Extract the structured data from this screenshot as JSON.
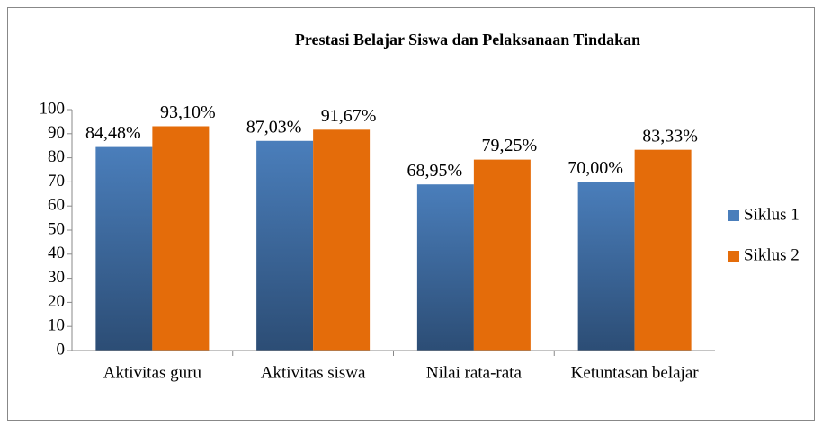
{
  "chart_data": {
    "type": "bar",
    "title": "Prestasi Belajar Siswa dan Pelaksanaan Tindakan",
    "categories": [
      "Aktivitas guru",
      "Aktivitas siswa",
      "Nilai rata-rata",
      "Ketuntasan belajar"
    ],
    "series": [
      {
        "name": "Siklus 1",
        "color": "#4a7ebb",
        "values": [
          84.48,
          87.03,
          68.95,
          70.0
        ],
        "value_labels": [
          "84,48%",
          "87,03%",
          "68,95%",
          "70,00%"
        ]
      },
      {
        "name": "Siklus 2",
        "color": "#e46c0a",
        "values": [
          93.1,
          91.67,
          79.25,
          83.33
        ],
        "value_labels": [
          "93,10%",
          "91,67%",
          "79,25%",
          "83,33%"
        ]
      }
    ],
    "ylim": [
      0,
      100
    ],
    "yticks": [
      0,
      10,
      20,
      30,
      40,
      50,
      60,
      70,
      80,
      90,
      100
    ],
    "legend": "right"
  }
}
